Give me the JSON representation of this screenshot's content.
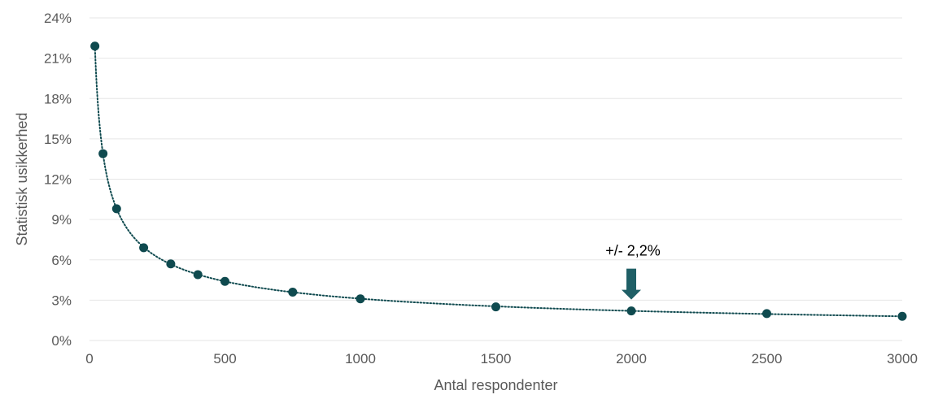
{
  "chart_data": {
    "type": "scatter",
    "xlabel": "Antal respondenter",
    "ylabel": "Statistisk usikkerhed",
    "xlim": [
      0,
      3000
    ],
    "ylim": [
      0,
      24
    ],
    "x_ticks": [
      0,
      500,
      1000,
      1500,
      2000,
      2500,
      3000
    ],
    "x_tick_labels": [
      "0",
      "500",
      "1000",
      "1500",
      "2000",
      "2500",
      "3000"
    ],
    "y_ticks": [
      0,
      3,
      6,
      9,
      12,
      15,
      18,
      21,
      24
    ],
    "y_tick_labels": [
      "0%",
      "3%",
      "6%",
      "9%",
      "12%",
      "15%",
      "18%",
      "21%",
      "24%"
    ],
    "grid": "horizontal",
    "trendline": "dotted power-law fit",
    "series": [
      {
        "x": [
          20,
          50,
          100,
          200,
          300,
          400,
          500,
          750,
          1000,
          1500,
          2000,
          2500,
          3000
        ],
        "y": [
          21.9,
          13.9,
          9.8,
          6.9,
          5.7,
          4.9,
          4.4,
          3.6,
          3.1,
          2.5,
          2.2,
          2.0,
          1.8
        ]
      }
    ],
    "annotation": {
      "text": "+/- 2,2%",
      "x": 2000,
      "y": 2.2
    },
    "colors": {
      "point": "#0f4a4f",
      "trendline": "#0f4a4f",
      "arrow": "#1f5f66",
      "grid": "#e6e6e6",
      "tick_text": "#595959"
    }
  }
}
